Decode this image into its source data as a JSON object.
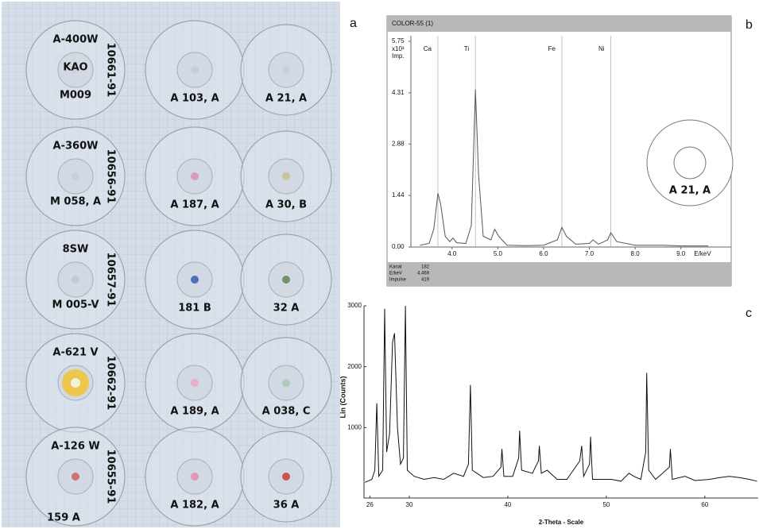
{
  "panel_labels": {
    "a": "a",
    "b": "b",
    "c": "c"
  },
  "photo": {
    "discs": [
      {
        "labels": [
          "A-400W",
          "KAO",
          "M009",
          "10661-91"
        ]
      },
      {
        "labels": [
          "A 103, A"
        ]
      },
      {
        "labels": [
          "A 21, A"
        ]
      },
      {
        "labels": [
          "A-360W",
          "M 058, A",
          "10656-91"
        ]
      },
      {
        "labels": [
          "A 187, A"
        ]
      },
      {
        "labels": [
          "A 30, B"
        ]
      },
      {
        "labels": [
          "8SW",
          "M 005-V",
          "10657-91"
        ]
      },
      {
        "labels": [
          "181 B"
        ]
      },
      {
        "labels": [
          "32 A"
        ]
      },
      {
        "labels": [
          "A-621 V",
          "10662-91"
        ]
      },
      {
        "labels": [
          "A 189, A"
        ]
      },
      {
        "labels": [
          "A 038, C"
        ]
      },
      {
        "labels": [
          "A-126 W",
          "10655-91"
        ]
      },
      {
        "labels": [
          "A 182, A"
        ]
      },
      {
        "labels": [
          "36 A"
        ]
      }
    ],
    "last_label": "159 A"
  },
  "chart_data": [
    {
      "type": "line",
      "title": "COLOR-55 (1)",
      "y_unit": "x10³",
      "y_label": "Imp.",
      "x_label": "E/keV",
      "xlim": [
        3.1,
        10.1
      ],
      "ylim": [
        0,
        5.75
      ],
      "yticks": [
        {
          "value": 0,
          "label": "0.00"
        },
        {
          "value": 1.44,
          "label": "1.44"
        },
        {
          "value": 2.88,
          "label": "2.88"
        },
        {
          "value": 4.31,
          "label": "4.31"
        },
        {
          "value": 5.75,
          "label": "5.75"
        }
      ],
      "xticks": [
        {
          "value": 4,
          "label": "4.0"
        },
        {
          "value": 5,
          "label": "5.0"
        },
        {
          "value": 6,
          "label": "6.0"
        },
        {
          "value": 7,
          "label": "7.0"
        },
        {
          "value": 8,
          "label": "8.0"
        },
        {
          "value": 9,
          "label": "9.0"
        }
      ],
      "annotations": [
        {
          "text": "Ca",
          "x": 3.69
        },
        {
          "text": "Ti",
          "x": 4.51
        },
        {
          "text": "Fe",
          "x": 6.4
        },
        {
          "text": "Ni",
          "x": 7.47
        }
      ],
      "inset_label": "A 21, A",
      "footer": [
        {
          "label": "Kanal",
          "value": "182"
        },
        {
          "label": "E/keV",
          "value": "4.469"
        },
        {
          "label": "Impulse",
          "value": "419"
        }
      ],
      "color": "#555",
      "x": [
        3.3,
        3.5,
        3.6,
        3.69,
        3.75,
        3.85,
        3.95,
        4.02,
        4.1,
        4.3,
        4.42,
        4.51,
        4.58,
        4.68,
        4.85,
        4.93,
        5.02,
        5.2,
        5.6,
        6.0,
        6.3,
        6.4,
        6.5,
        6.7,
        7.0,
        7.08,
        7.2,
        7.4,
        7.47,
        7.6,
        8.0,
        8.6,
        9.0,
        9.6
      ],
      "values": [
        0.05,
        0.1,
        0.5,
        1.5,
        1.2,
        0.3,
        0.15,
        0.25,
        0.12,
        0.1,
        0.6,
        4.4,
        2.0,
        0.3,
        0.2,
        0.5,
        0.3,
        0.05,
        0.04,
        0.05,
        0.2,
        0.55,
        0.3,
        0.08,
        0.1,
        0.2,
        0.08,
        0.2,
        0.4,
        0.15,
        0.05,
        0.05,
        0.03,
        0.03
      ]
    },
    {
      "type": "line",
      "x_label": "2-Theta - Scale",
      "y_label": "Lin (Counts)",
      "xlim": [
        25.4,
        65.5
      ],
      "ylim": [
        0,
        3000
      ],
      "yticks": [
        1000,
        2000,
        3000
      ],
      "xticks": [
        26,
        30,
        40,
        50,
        60
      ],
      "color": "#111",
      "x": [
        25.5,
        26.2,
        26.5,
        26.7,
        26.9,
        27.3,
        27.5,
        27.7,
        28.0,
        28.3,
        28.5,
        28.8,
        29.1,
        29.4,
        29.6,
        29.8,
        30.5,
        31.5,
        32.5,
        33.5,
        34.5,
        35.5,
        36.0,
        36.2,
        36.4,
        37.5,
        38.5,
        39.3,
        39.4,
        39.6,
        40.5,
        41.1,
        41.2,
        41.4,
        42.5,
        43.1,
        43.2,
        43.4,
        44.0,
        45.0,
        46.0,
        47.3,
        47.5,
        47.7,
        48.3,
        48.4,
        48.6,
        49.5,
        50.5,
        51.5,
        52.3,
        52.8,
        53.5,
        54.0,
        54.1,
        54.3,
        55.0,
        56.4,
        56.5,
        56.7,
        58.0,
        59.0,
        60.5,
        61.5,
        62.5,
        63.5,
        64.5,
        65.3
      ],
      "values": [
        100,
        150,
        300,
        1400,
        200,
        300,
        2950,
        600,
        900,
        2400,
        2550,
        1000,
        400,
        500,
        3000,
        300,
        200,
        150,
        180,
        150,
        250,
        200,
        400,
        1700,
        300,
        180,
        200,
        350,
        650,
        200,
        200,
        500,
        950,
        300,
        250,
        450,
        700,
        250,
        300,
        150,
        150,
        450,
        700,
        200,
        400,
        850,
        150,
        150,
        150,
        120,
        250,
        200,
        150,
        600,
        1900,
        300,
        150,
        350,
        650,
        150,
        200,
        130,
        150,
        180,
        200,
        180,
        150,
        120
      ]
    }
  ]
}
